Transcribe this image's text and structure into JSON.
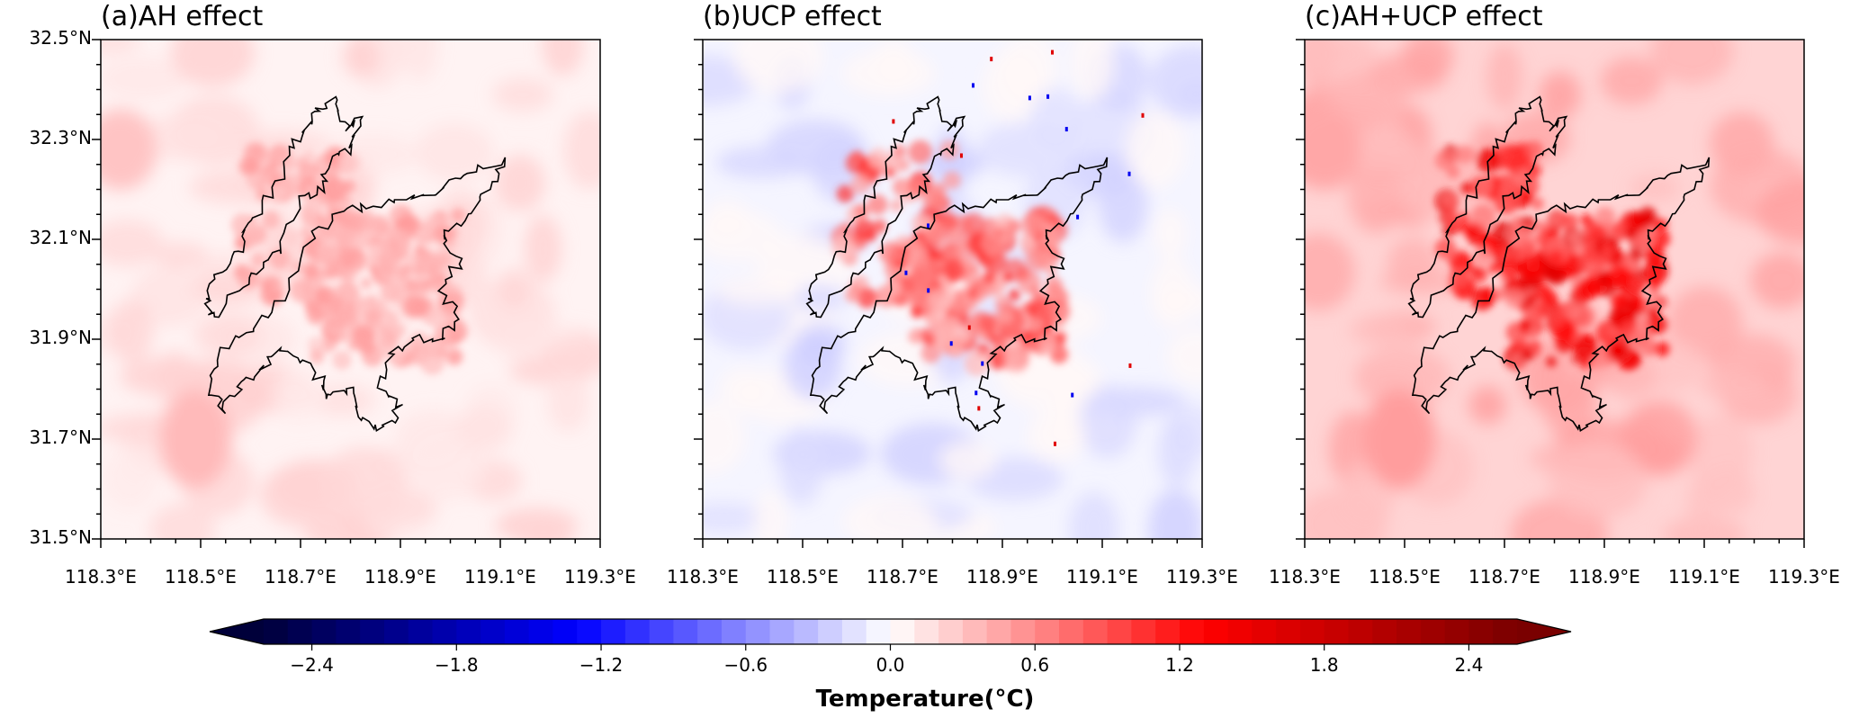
{
  "figure": {
    "panels": [
      {
        "title": "(a)AH effect",
        "mode": "ah"
      },
      {
        "title": "(b)UCP effect",
        "mode": "ucp"
      },
      {
        "title": "(c)AH+UCP effect",
        "mode": "sum"
      }
    ],
    "lat_ticks": [
      "32.5°N",
      "32.3°N",
      "32.1°N",
      "31.9°N",
      "31.7°N",
      "31.5°N"
    ],
    "lon_ticks": [
      "118.3°E",
      "118.5°E",
      "118.7°E",
      "118.9°E",
      "119.1°E",
      "119.3°E"
    ],
    "colorbar": {
      "label": "Temperature(°C)",
      "ticks": [
        "−2.4",
        "−1.8",
        "−1.2",
        "−0.6",
        "0.0",
        "0.6",
        "1.2",
        "1.8",
        "2.4"
      ],
      "tick_values": [
        -2.4,
        -1.8,
        -1.2,
        -0.6,
        0.0,
        0.6,
        1.2,
        1.8,
        2.4
      ],
      "range": [
        -2.6,
        2.6
      ],
      "colormap": "seismic",
      "extend": "both",
      "colors": {
        "cold_end": "#00003a",
        "blue": "#0000ff",
        "white": "#ffffff",
        "red": "#ff0000",
        "hot_end": "#7a0000"
      }
    }
  }
}
